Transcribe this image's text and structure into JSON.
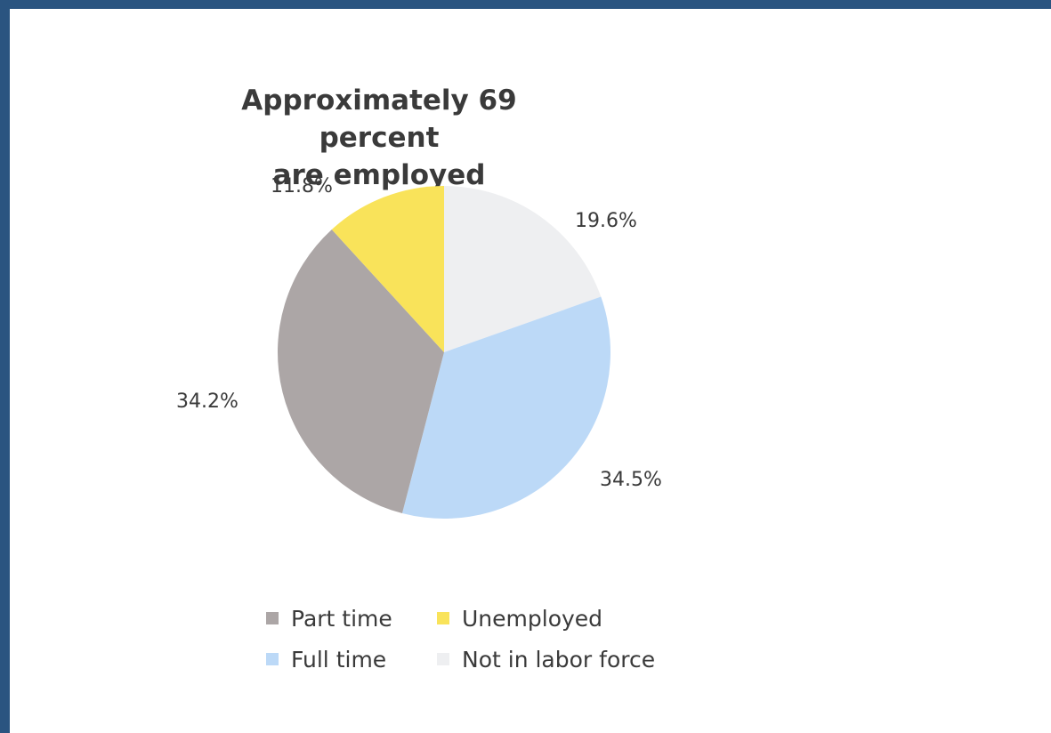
{
  "chart_data": {
    "type": "pie",
    "title_lines": [
      "Approximately 69 percent",
      "are employed"
    ],
    "slices": [
      {
        "name": "Not in labor force",
        "value": 19.6,
        "label": "19.6%",
        "color": "#eeeff1"
      },
      {
        "name": "Full time",
        "value": 34.5,
        "label": "34.5%",
        "color": "#bcd9f7"
      },
      {
        "name": "Part time",
        "value": 34.2,
        "label": "34.2%",
        "color": "#aca6a6"
      },
      {
        "name": "Unemployed",
        "value": 11.8,
        "label": "11.8%",
        "color": "#f9e35a"
      }
    ],
    "legend": [
      {
        "name": "Part time",
        "color": "#aca6a6"
      },
      {
        "name": "Unemployed",
        "color": "#f9e35a"
      },
      {
        "name": "Full time",
        "color": "#bcd9f7"
      },
      {
        "name": "Not in labor force",
        "color": "#eeeff1"
      }
    ],
    "legend_placement": "bottom"
  }
}
